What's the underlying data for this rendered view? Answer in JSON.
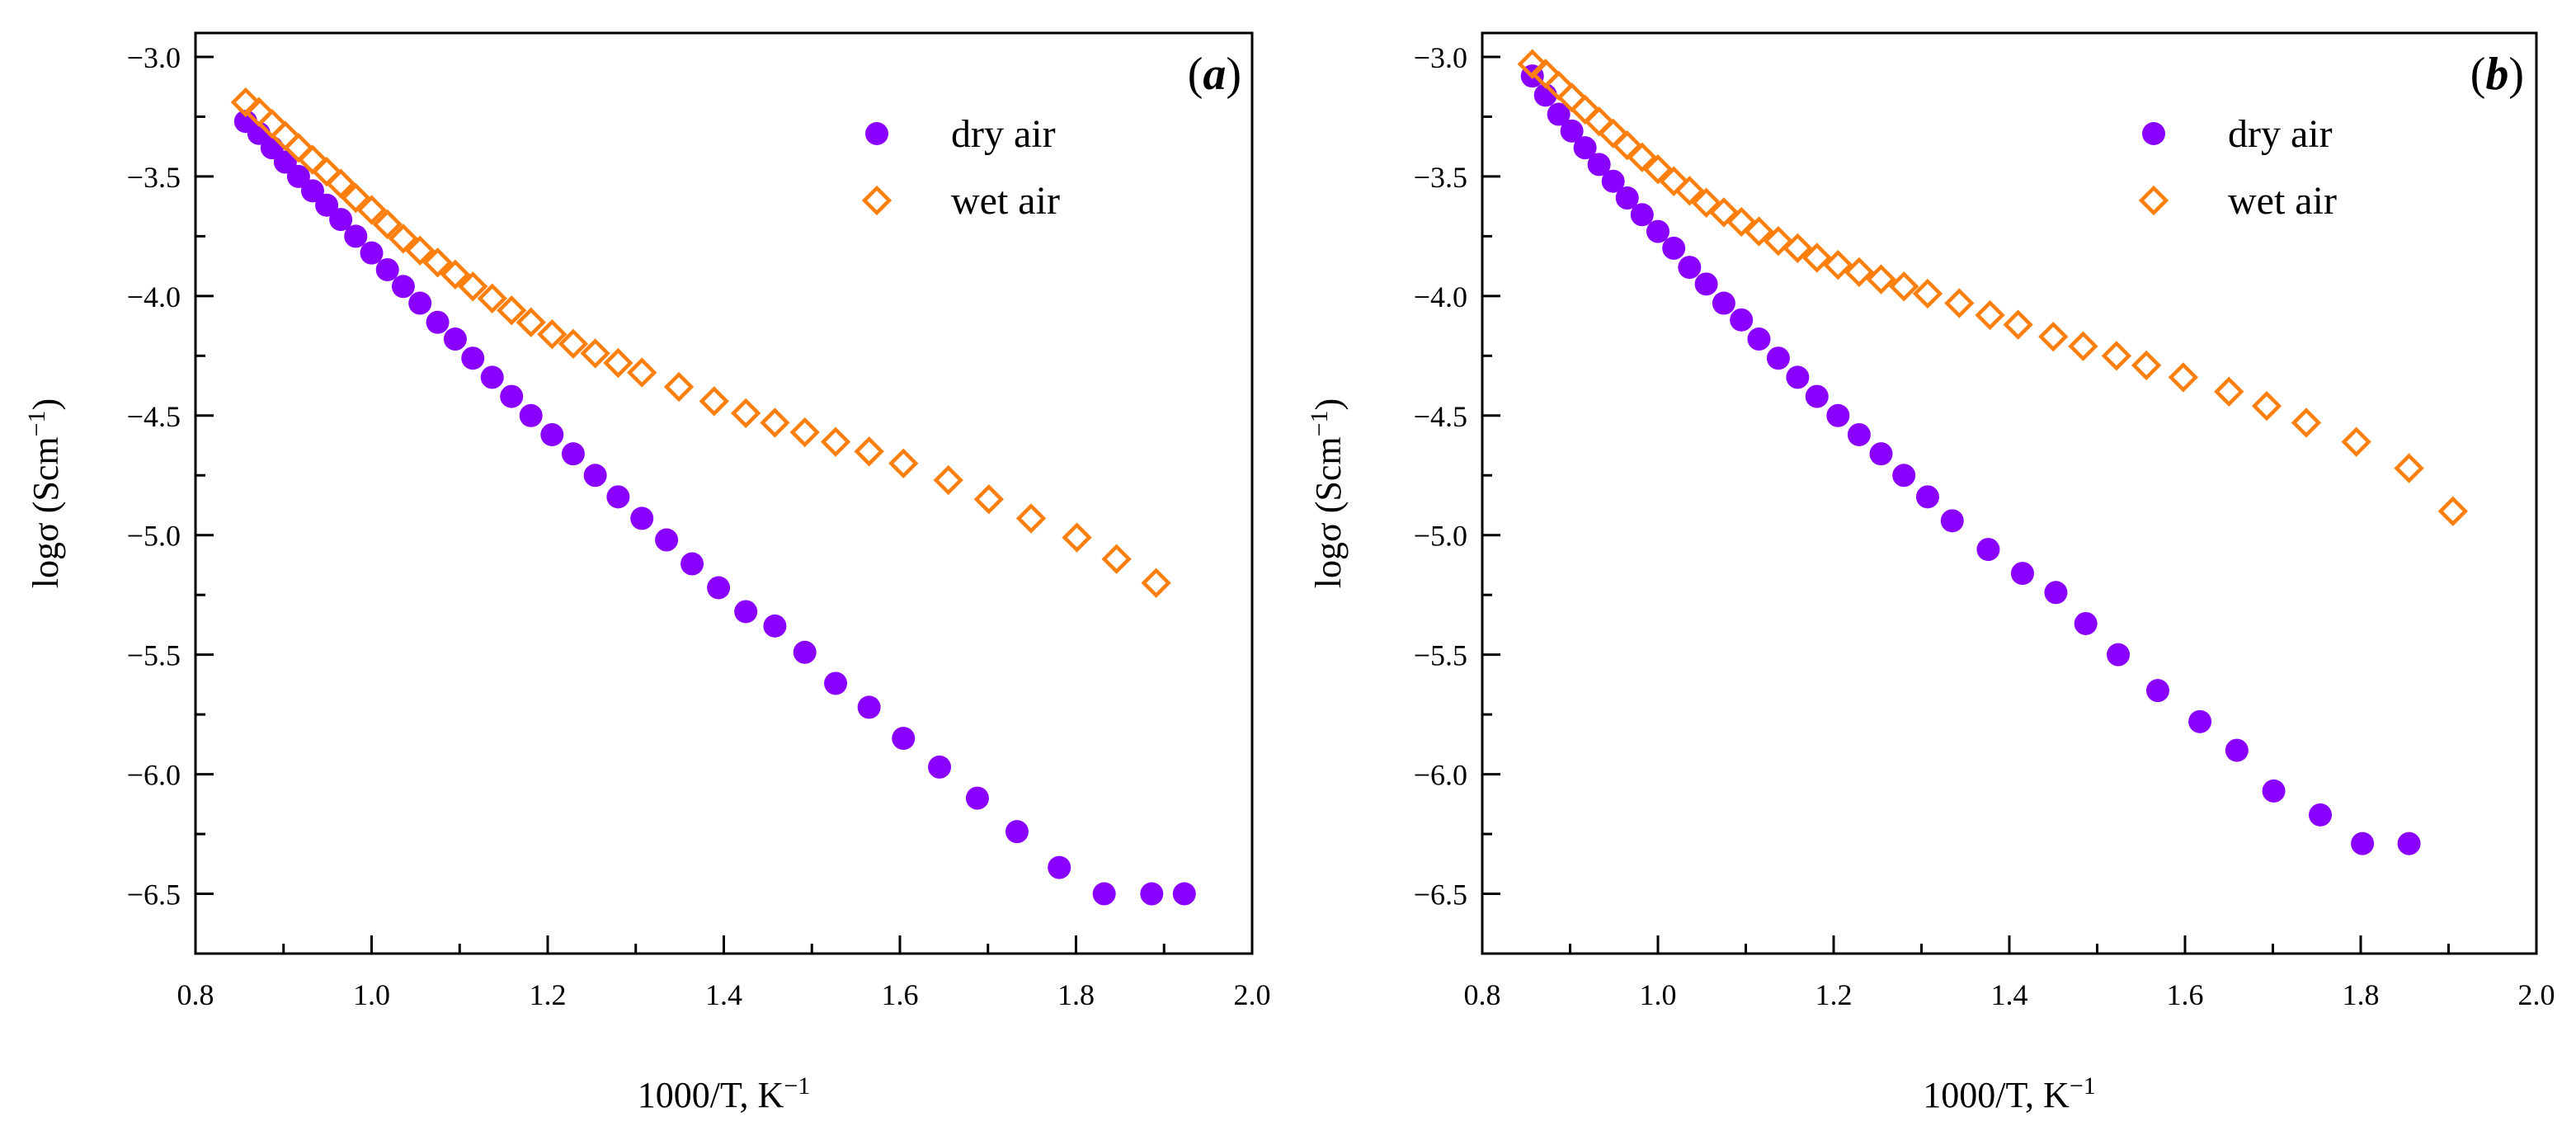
{
  "colors": {
    "dry": "#8a00ff",
    "wet": "#ff7f0e",
    "axis": "#000000"
  },
  "markers": {
    "dry": "filled-circle",
    "wet": "open-diamond"
  },
  "chart_data": [
    {
      "type": "scatter",
      "panel_label": "(a)",
      "xlabel": "1000/T, K",
      "xlabel_sup": "−1",
      "ylabel": "logσ (Scm",
      "ylabel_sup": "−1",
      "ylabel_close": ")",
      "xlim": [
        0.8,
        2.0
      ],
      "ylim": [
        -6.75,
        -2.9
      ],
      "xticks": [
        0.8,
        1.0,
        1.2,
        1.4,
        1.6,
        1.8,
        2.0
      ],
      "xtick_labels": [
        "0.8",
        "1.0",
        "1.2",
        "1.4",
        "1.6",
        "1.8",
        "2.0"
      ],
      "yticks": [
        -3.0,
        -3.5,
        -4.0,
        -4.5,
        -5.0,
        -5.5,
        -6.0,
        -6.5
      ],
      "ytick_labels": [
        "−3.0",
        "−3.5",
        "−4.0",
        "−4.5",
        "−5.0",
        "−5.5",
        "−6.0",
        "−6.5"
      ],
      "legend_position": "top-right",
      "series": [
        {
          "name": "dry air",
          "key": "dry",
          "x": [
            0.857,
            0.872,
            0.887,
            0.902,
            0.917,
            0.933,
            0.949,
            0.965,
            0.982,
            1.0,
            1.018,
            1.036,
            1.055,
            1.075,
            1.095,
            1.115,
            1.137,
            1.159,
            1.181,
            1.205,
            1.229,
            1.254,
            1.28,
            1.307,
            1.335,
            1.364,
            1.394,
            1.425,
            1.458,
            1.492,
            1.527,
            1.565,
            1.604,
            1.645,
            1.688,
            1.733,
            1.781,
            1.832,
            1.886,
            1.923
          ],
          "y": [
            -3.27,
            -3.32,
            -3.38,
            -3.44,
            -3.5,
            -3.56,
            -3.62,
            -3.68,
            -3.75,
            -3.82,
            -3.89,
            -3.96,
            -4.03,
            -4.11,
            -4.18,
            -4.26,
            -4.34,
            -4.42,
            -4.5,
            -4.58,
            -4.66,
            -4.75,
            -4.84,
            -4.93,
            -5.02,
            -5.12,
            -5.22,
            -5.32,
            -5.38,
            -5.49,
            -5.62,
            -5.72,
            -5.85,
            -5.97,
            -6.1,
            -6.24,
            -6.39,
            -6.5,
            -6.5,
            -6.5
          ]
        },
        {
          "name": "wet air",
          "key": "wet",
          "x": [
            0.857,
            0.872,
            0.887,
            0.902,
            0.917,
            0.933,
            0.949,
            0.965,
            0.982,
            1.0,
            1.018,
            1.036,
            1.055,
            1.075,
            1.095,
            1.115,
            1.137,
            1.159,
            1.181,
            1.205,
            1.229,
            1.254,
            1.28,
            1.307,
            1.349,
            1.389,
            1.425,
            1.458,
            1.492,
            1.527,
            1.565,
            1.604,
            1.655,
            1.701,
            1.749,
            1.801,
            1.846,
            1.891
          ],
          "y": [
            -3.19,
            -3.23,
            -3.28,
            -3.33,
            -3.38,
            -3.43,
            -3.48,
            -3.53,
            -3.59,
            -3.64,
            -3.7,
            -3.76,
            -3.81,
            -3.86,
            -3.91,
            -3.96,
            -4.01,
            -4.06,
            -4.11,
            -4.16,
            -4.2,
            -4.24,
            -4.28,
            -4.32,
            -4.38,
            -4.44,
            -4.49,
            -4.53,
            -4.57,
            -4.61,
            -4.65,
            -4.7,
            -4.77,
            -4.85,
            -4.93,
            -5.01,
            -5.1,
            -5.2
          ]
        }
      ]
    },
    {
      "type": "scatter",
      "panel_label": "(b)",
      "xlabel": "1000/T, K",
      "xlabel_sup": "−1",
      "ylabel": "logσ (Scm",
      "ylabel_sup": "−1",
      "ylabel_close": ")",
      "xlim": [
        0.8,
        2.0
      ],
      "ylim": [
        -6.75,
        -2.9
      ],
      "xticks": [
        0.8,
        1.0,
        1.2,
        1.4,
        1.6,
        1.8,
        2.0
      ],
      "xtick_labels": [
        "0.8",
        "1.0",
        "1.2",
        "1.4",
        "1.6",
        "1.8",
        "2.0"
      ],
      "yticks": [
        -3.0,
        -3.5,
        -4.0,
        -4.5,
        -5.0,
        -5.5,
        -6.0,
        -6.5
      ],
      "ytick_labels": [
        "−3.0",
        "−3.5",
        "−4.0",
        "−4.5",
        "−5.0",
        "−5.5",
        "−6.0",
        "−6.5"
      ],
      "legend_position": "top-right",
      "series": [
        {
          "name": "dry air",
          "key": "dry",
          "x": [
            0.857,
            0.872,
            0.887,
            0.902,
            0.917,
            0.933,
            0.949,
            0.965,
            0.982,
            1.0,
            1.018,
            1.036,
            1.055,
            1.075,
            1.095,
            1.115,
            1.137,
            1.159,
            1.181,
            1.205,
            1.229,
            1.254,
            1.28,
            1.307,
            1.335,
            1.376,
            1.415,
            1.453,
            1.487,
            1.524,
            1.569,
            1.617,
            1.659,
            1.701,
            1.754,
            1.802,
            1.855
          ],
          "y": [
            -3.08,
            -3.16,
            -3.24,
            -3.31,
            -3.38,
            -3.45,
            -3.52,
            -3.59,
            -3.66,
            -3.73,
            -3.8,
            -3.88,
            -3.95,
            -4.03,
            -4.1,
            -4.18,
            -4.26,
            -4.34,
            -4.42,
            -4.5,
            -4.58,
            -4.66,
            -4.75,
            -4.84,
            -4.94,
            -5.06,
            -5.16,
            -5.24,
            -5.37,
            -5.5,
            -5.65,
            -5.78,
            -5.9,
            -6.07,
            -6.17,
            -6.29,
            -6.29
          ]
        },
        {
          "name": "wet air",
          "key": "wet",
          "x": [
            0.857,
            0.872,
            0.887,
            0.902,
            0.917,
            0.933,
            0.949,
            0.965,
            0.982,
            1.0,
            1.018,
            1.036,
            1.055,
            1.075,
            1.095,
            1.115,
            1.137,
            1.159,
            1.181,
            1.205,
            1.229,
            1.254,
            1.28,
            1.307,
            1.343,
            1.378,
            1.41,
            1.45,
            1.484,
            1.522,
            1.556,
            1.598,
            1.65,
            1.693,
            1.738,
            1.795,
            1.855,
            1.905
          ],
          "y": [
            -3.03,
            -3.07,
            -3.12,
            -3.17,
            -3.22,
            -3.27,
            -3.32,
            -3.37,
            -3.42,
            -3.47,
            -3.52,
            -3.56,
            -3.61,
            -3.65,
            -3.69,
            -3.73,
            -3.77,
            -3.8,
            -3.84,
            -3.87,
            -3.9,
            -3.93,
            -3.96,
            -3.99,
            -4.03,
            -4.08,
            -4.12,
            -4.17,
            -4.21,
            -4.25,
            -4.29,
            -4.34,
            -4.4,
            -4.46,
            -4.53,
            -4.61,
            -4.72,
            -4.9
          ]
        }
      ]
    }
  ]
}
